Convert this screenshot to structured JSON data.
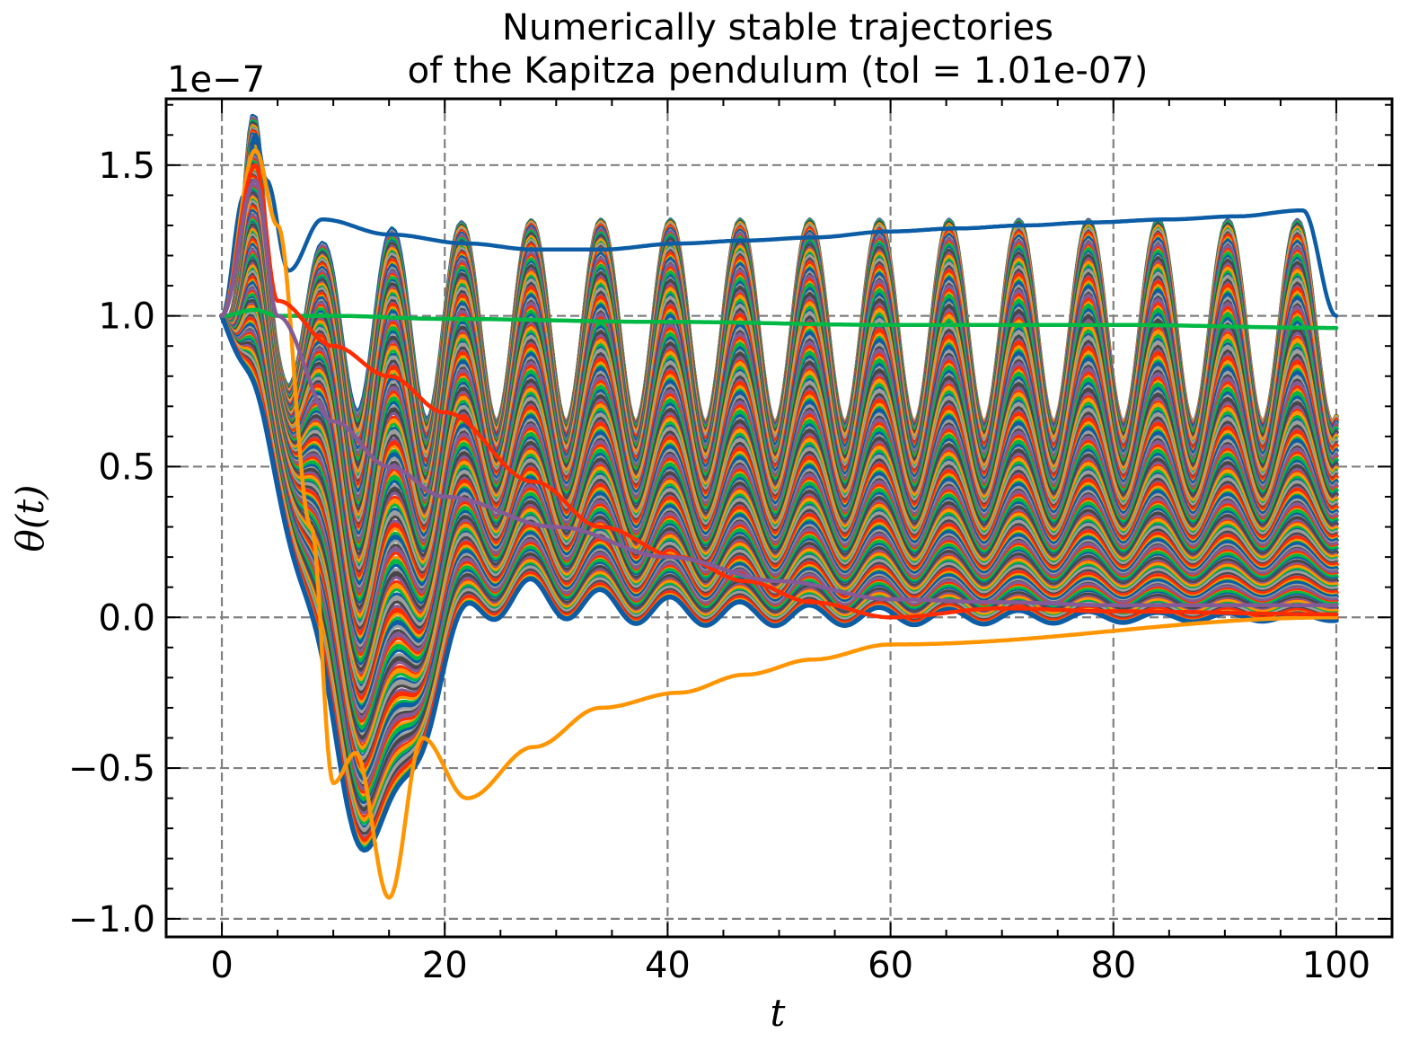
{
  "chart_data": {
    "type": "line",
    "title": "Numerically stable trajectories\nof the Kapitza pendulum (tol = 1.01e-07)",
    "title_lines": [
      "Numerically stable trajectories",
      "of the Kapitza pendulum (tol = 1.01e-07)"
    ],
    "xlabel": "t",
    "ylabel": "θ(t)",
    "offset_text": "1e−7",
    "y_scale_multiplier": 1e-07,
    "xlim": [
      -5,
      105
    ],
    "ylim": [
      -1.06,
      1.72
    ],
    "x_ticks": [
      0,
      20,
      40,
      60,
      80,
      100
    ],
    "x_tick_labels": [
      "0",
      "20",
      "40",
      "60",
      "80",
      "100"
    ],
    "y_ticks": [
      -1.0,
      -0.5,
      0.0,
      0.5,
      1.0,
      1.5
    ],
    "y_tick_labels": [
      "−1.0",
      "−0.5",
      "0.0",
      "0.5",
      "1.0",
      "1.5"
    ],
    "grid": true,
    "legend": "none",
    "colors": [
      "#0C5DA5",
      "#00B945",
      "#FF9500",
      "#FF2C00",
      "#845B97",
      "#474747",
      "#9e9e9e"
    ],
    "series": [
      {
        "x": [
          0,
          2,
          3,
          4,
          6,
          9,
          15,
          22,
          28,
          34,
          41,
          47,
          53,
          60,
          66,
          72,
          78,
          85,
          91,
          97,
          100
        ],
        "y": [
          1.0,
          1.4,
          1.6,
          1.45,
          1.15,
          1.32,
          1.27,
          1.24,
          1.22,
          1.22,
          1.24,
          1.25,
          1.26,
          1.28,
          1.29,
          1.3,
          1.31,
          1.32,
          1.33,
          1.35,
          1.0
        ]
      },
      {
        "x": [
          0,
          3,
          5,
          10,
          20,
          40,
          60,
          80,
          100
        ],
        "y": [
          1.0,
          1.02,
          1.0,
          1.0,
          0.99,
          0.98,
          0.97,
          0.97,
          0.96
        ]
      },
      {
        "x": [
          0,
          3,
          5,
          8,
          10,
          12,
          15,
          18,
          22,
          28,
          34,
          41,
          47,
          53,
          60,
          100
        ],
        "y": [
          1.0,
          1.55,
          1.3,
          0.3,
          -0.55,
          -0.45,
          -0.93,
          -0.4,
          -0.6,
          -0.43,
          -0.3,
          -0.25,
          -0.19,
          -0.14,
          -0.09,
          0.0
        ]
      },
      {
        "x": [
          0,
          3,
          5,
          10,
          15,
          20,
          28,
          34,
          41,
          47,
          53,
          60,
          70,
          80,
          100
        ],
        "y": [
          1.0,
          1.5,
          1.05,
          0.9,
          0.8,
          0.68,
          0.45,
          0.3,
          0.2,
          0.12,
          0.05,
          0.0,
          0.03,
          0.02,
          0.01
        ]
      },
      {
        "x": [
          0,
          3,
          5,
          10,
          15,
          20,
          30,
          40,
          50,
          60,
          70,
          80,
          100
        ],
        "y": [
          1.0,
          1.45,
          1.0,
          0.65,
          0.5,
          0.4,
          0.3,
          0.2,
          0.12,
          0.06,
          0.05,
          0.04,
          0.04
        ]
      }
    ]
  }
}
